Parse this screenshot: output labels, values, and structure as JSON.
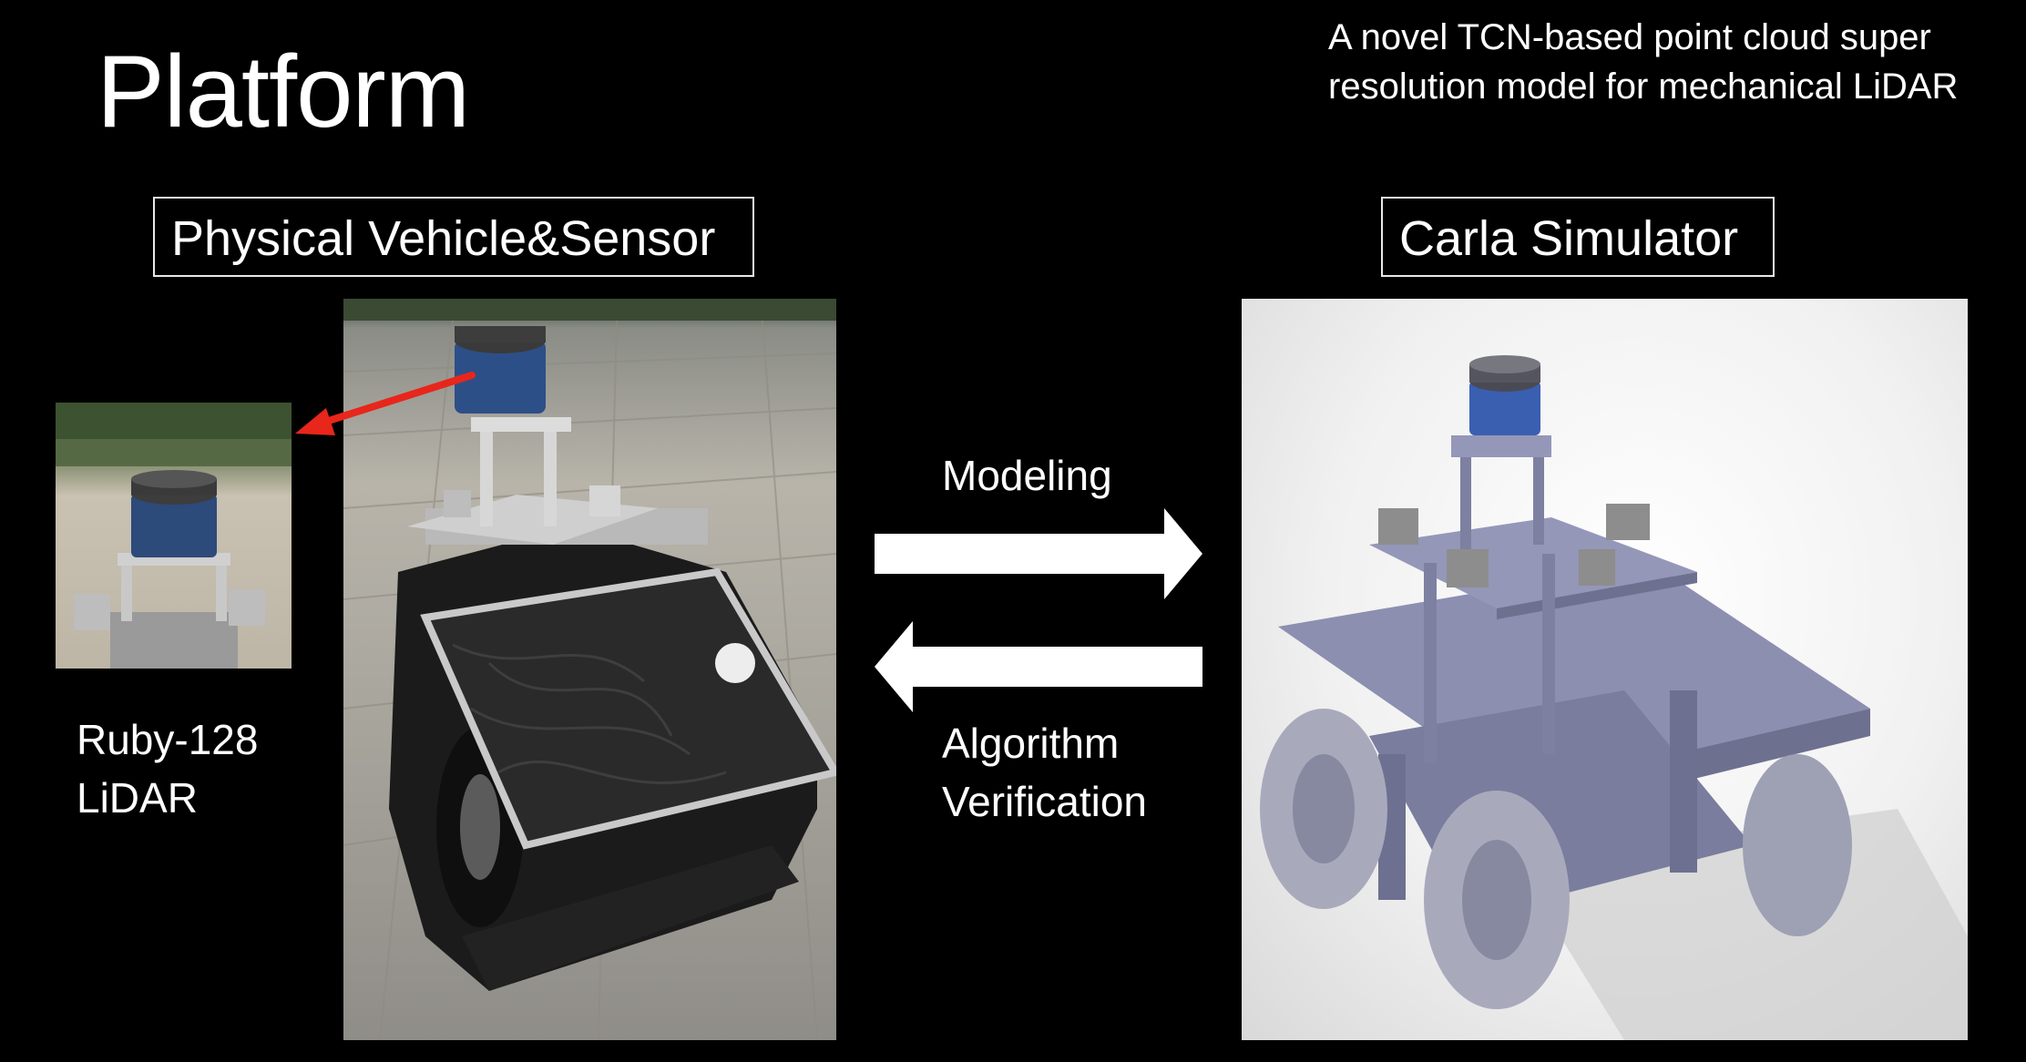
{
  "slide": {
    "title": "Platform",
    "subtitle_line1": "A novel TCN-based point cloud super",
    "subtitle_line2": "resolution model for mechanical LiDAR",
    "left_box_label": "Physical Vehicle&Sensor",
    "right_box_label": "Carla Simulator",
    "lidar_caption_line1": "Ruby-128",
    "lidar_caption_line2": "LiDAR",
    "modeling_label": "Modeling",
    "verification_label_line1": "Algorithm",
    "verification_label_line2": "Verification"
  },
  "colors": {
    "background": "#000000",
    "text": "#ffffff",
    "pointer_arrow": "#e8261b",
    "sim_vehicle": "#8c8fb0",
    "lidar_blue": "#3a5fb0"
  },
  "icons": {
    "arrow_right": "right-arrow-icon",
    "arrow_left": "left-arrow-icon",
    "pointer": "red-pointer-arrow-icon"
  }
}
